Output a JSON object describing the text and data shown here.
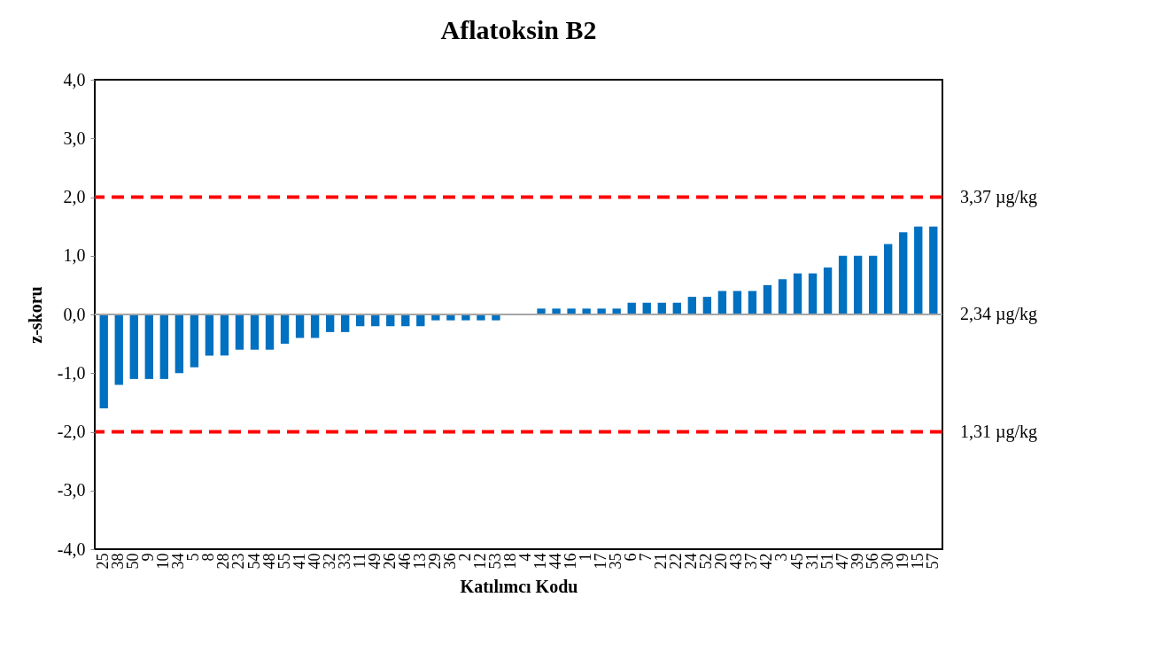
{
  "chart_data": {
    "type": "bar",
    "title": "Aflatoksin B2",
    "xlabel": "Katılımcı Kodu",
    "ylabel": "z-skoru",
    "categories": [
      "25",
      "38",
      "50",
      "9",
      "10",
      "34",
      "5",
      "8",
      "28",
      "23",
      "54",
      "48",
      "55",
      "41",
      "40",
      "32",
      "33",
      "11",
      "49",
      "26",
      "46",
      "13",
      "29",
      "36",
      "2",
      "12",
      "53",
      "18",
      "4",
      "14",
      "44",
      "16",
      "1",
      "17",
      "35",
      "6",
      "7",
      "21",
      "22",
      "24",
      "52",
      "20",
      "43",
      "37",
      "42",
      "3",
      "45",
      "31",
      "51",
      "47",
      "39",
      "56",
      "30",
      "19",
      "15",
      "57"
    ],
    "values": [
      -1.6,
      -1.2,
      -1.1,
      -1.1,
      -1.1,
      -1.0,
      -0.9,
      -0.7,
      -0.7,
      -0.6,
      -0.6,
      -0.6,
      -0.5,
      -0.4,
      -0.4,
      -0.3,
      -0.3,
      -0.2,
      -0.2,
      -0.2,
      -0.2,
      -0.2,
      -0.1,
      -0.1,
      -0.1,
      -0.1,
      -0.1,
      0,
      0,
      0.1,
      0.1,
      0.1,
      0.1,
      0.1,
      0.1,
      0.2,
      0.2,
      0.2,
      0.2,
      0.3,
      0.3,
      0.4,
      0.4,
      0.4,
      0.5,
      0.6,
      0.7,
      0.7,
      0.8,
      1.0,
      1.0,
      1.0,
      1.2,
      1.4,
      1.5,
      1.5
    ],
    "color": "#0070c0",
    "ylim": [
      -4,
      4
    ],
    "yticks": [
      {
        "value": -4,
        "label": "-4,0"
      },
      {
        "value": -3,
        "label": "-3,0"
      },
      {
        "value": -2,
        "label": "-2,0"
      },
      {
        "value": -1,
        "label": "-1,0"
      },
      {
        "value": 0,
        "label": "0,0"
      },
      {
        "value": 1,
        "label": "1,0"
      },
      {
        "value": 2,
        "label": "2,0"
      },
      {
        "value": 3,
        "label": "3,0"
      },
      {
        "value": 4,
        "label": "4,0"
      }
    ],
    "ref_lines": [
      {
        "axis": "y",
        "value": 2,
        "label": "3,37 µg/kg",
        "color": "#ff0000",
        "line_style": "dashed"
      },
      {
        "axis": "y",
        "value": 0,
        "label": "2,34 µg/kg",
        "color": "#a6a6a6",
        "line_style": "solid"
      },
      {
        "axis": "y",
        "value": -2,
        "label": "1,31 µg/kg",
        "color": "#ff0000",
        "line_style": "dashed"
      }
    ]
  }
}
